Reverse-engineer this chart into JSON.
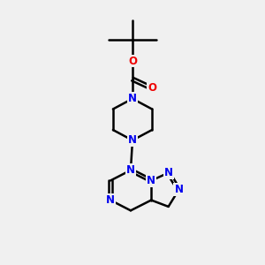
{
  "bg_color": "#f0f0f0",
  "bond_color": "#000000",
  "bond_width": 1.8,
  "atom_colors": {
    "N": "#0000ee",
    "O": "#ee0000",
    "C": "#000000"
  },
  "font_size_atom": 8.5,
  "fig_bg": "#f0f0f0",
  "dbo": 0.05
}
